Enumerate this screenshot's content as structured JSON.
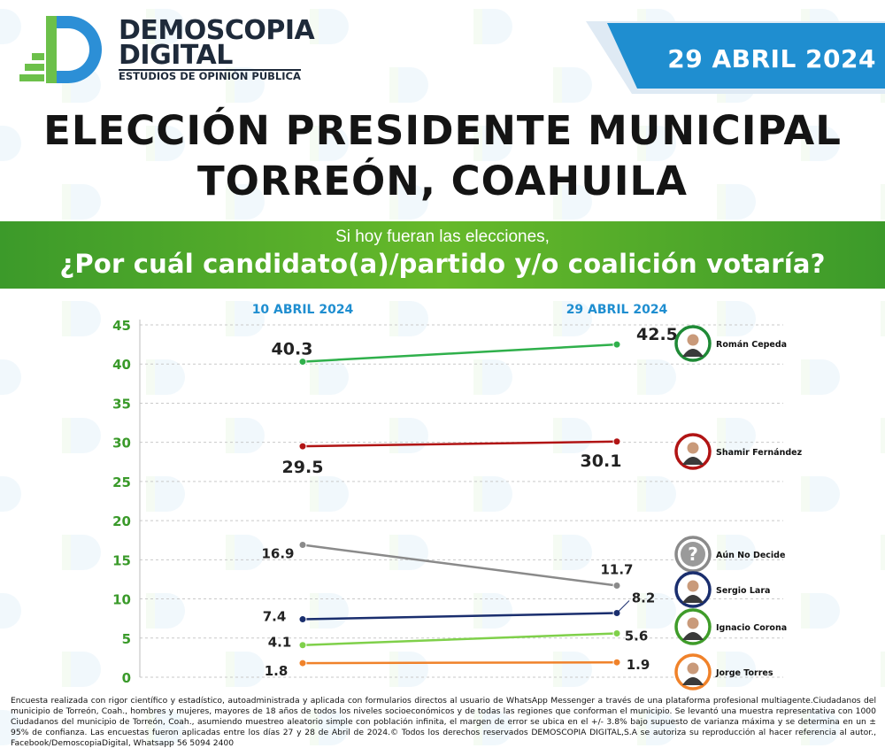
{
  "header": {
    "brand_line1": "DEMOSCOPIA",
    "brand_line2": "DIGITAL",
    "brand_tagline": "ESTUDIOS DE OPINIÓN PÚBLICA",
    "date": "29 ABRIL 2024"
  },
  "title": {
    "line1": "ELECCIÓN PRESIDENTE MUNICIPAL",
    "line2": "TORREÓN, COAHUILA"
  },
  "question": {
    "intro": "Si hoy fueran las elecciones,",
    "main": "¿Por cuál candidato(a)/partido y/o coalición votaría?"
  },
  "colors": {
    "axis_green": "#3a9a2a",
    "date_blue": "#1f8ed0",
    "band_green": "#4fa82a"
  },
  "chart_data": {
    "type": "line",
    "x": [
      "10 ABRIL 2024",
      "29 ABRIL 2024"
    ],
    "ylim": [
      0,
      45
    ],
    "yticks": [
      "0",
      "5",
      "10",
      "15",
      "20",
      "25",
      "30",
      "35",
      "40",
      "45"
    ],
    "grid": true,
    "series": [
      {
        "name": "Román Cepeda",
        "values": [
          40.3,
          42.5
        ],
        "labels": [
          "40.3",
          "42.5"
        ],
        "color": "#2fb04b",
        "ring": "#1f8a36",
        "icon": "person-icon"
      },
      {
        "name": "Shamir Fernández",
        "values": [
          29.5,
          30.1
        ],
        "labels": [
          "29.5",
          "30.1"
        ],
        "color": "#b11414",
        "ring": "#b11414",
        "icon": "person-icon"
      },
      {
        "name": "Aún No Decide",
        "values": [
          16.9,
          11.7
        ],
        "labels": [
          "16.9",
          "11.7"
        ],
        "color": "#8a8a8a",
        "ring": "#8a8a8a",
        "icon": "question-icon"
      },
      {
        "name": "Sergio Lara",
        "values": [
          7.4,
          8.2
        ],
        "labels": [
          "7.4",
          "8.2"
        ],
        "color": "#1a2e6e",
        "ring": "#1a2e6e",
        "icon": "person-icon"
      },
      {
        "name": "Ignacio Corona",
        "values": [
          4.1,
          5.6
        ],
        "labels": [
          "4.1",
          "5.6"
        ],
        "color": "#7fd04a",
        "ring": "#3f9c2a",
        "icon": "person-icon"
      },
      {
        "name": "Jorge Torres",
        "values": [
          1.8,
          1.9
        ],
        "labels": [
          "1.8",
          "1.9"
        ],
        "color": "#f0822a",
        "ring": "#f0822a",
        "icon": "person-icon"
      }
    ]
  },
  "footnote": "Encuesta realizada con rigor científico y estadístico, autoadministrada y aplicada con formularios directos al usuario de WhatsApp Messenger a través de una plataforma profesional multiagente.Ciudadanos del municipio de Torreón, Coah., hombres y mujeres, mayores de 18 años de todos los niveles socioeconómicos y de todas las regiones que conforman el municipio. Se levantó una muestra representativa con 1000 Ciudadanos del municipio de Torreón, Coah., asumiendo muestreo aleatorio simple con población infinita, el margen de error se ubica en el +/- 3.8% bajo supuesto de varianza máxima y se determina en un ± 95% de confianza. Las encuestas fueron aplicadas entre los días 27 y 28 de Abril de 2024.© Todos los derechos reservados DEMOSCOPIA DIGITAL,S.A se autoriza su reproducción al hacer referencia al autor., Facebook/DemoscopiaDigital, Whatsapp 56 5094 2400"
}
